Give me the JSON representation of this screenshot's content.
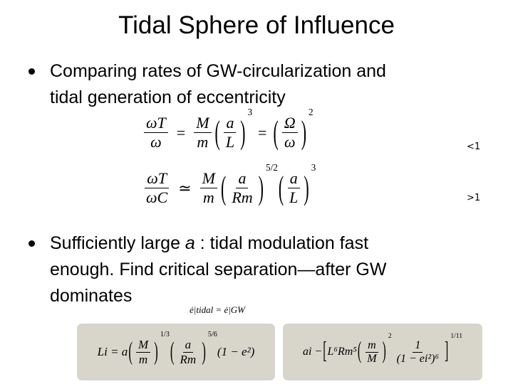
{
  "title": "Tidal Sphere of Influence",
  "bullets": [
    {
      "lines": [
        "Comparing rates of GW-circularization and",
        "tidal generation of eccentricity"
      ]
    },
    {
      "lines": [
        [
          "Sufficiently large ",
          "a",
          " : tidal modulation fast"
        ],
        "enough. Find critical separation—after GW",
        "dominates"
      ]
    }
  ],
  "equations": [
    {
      "expr": [
        {
          "frac": [
            "ωT",
            "ω"
          ]
        },
        "=",
        {
          "frac": [
            "M",
            "m"
          ]
        },
        {
          "open": "(",
          "body": {
            "frac": [
              "a",
              "L"
            ]
          },
          "close": ")",
          "sup": "3"
        },
        "=",
        {
          "open": "(",
          "body": {
            "frac": [
              "Ω",
              "ω"
            ]
          },
          "close": ")",
          "sup": "2"
        }
      ],
      "note": "<1"
    },
    {
      "expr": [
        {
          "frac": [
            "ωT",
            "ωC"
          ]
        },
        "≃",
        {
          "frac": [
            "M",
            "m"
          ]
        },
        {
          "open": "(",
          "body": {
            "frac": [
              "a",
              "Rm"
            ]
          },
          "close": ")",
          "sup": "5/2"
        },
        {
          "open": "(",
          "body": {
            "frac": [
              "a",
              "L"
            ]
          },
          "close": ")",
          "sup": "3"
        }
      ],
      "note": ">1"
    }
  ],
  "condition": "ė|tidal = ė|GW",
  "boxes": [
    {
      "expr": [
        "Li = a",
        {
          "open": "(",
          "body": {
            "frac": [
              "M",
              "m"
            ]
          },
          "close": ")",
          "sup": "1/3"
        },
        {
          "open": "(",
          "body": {
            "frac": [
              "a",
              "Rm"
            ]
          },
          "close": ")",
          "sup": "5/6"
        },
        "(1 − e²)"
      ]
    },
    {
      "expr": [
        "ai −",
        {
          "open": "[",
          "body": [
            "L⁶Rm⁵",
            {
              "open": "(",
              "body": {
                "frac": [
                  "m",
                  "M"
                ]
              },
              "close": ")",
              "sup": "2"
            },
            {
              "frac": [
                "1",
                "(1 − ei²)⁶"
              ]
            }
          ],
          "close": "]",
          "sup": "1/11"
        }
      ]
    }
  ]
}
